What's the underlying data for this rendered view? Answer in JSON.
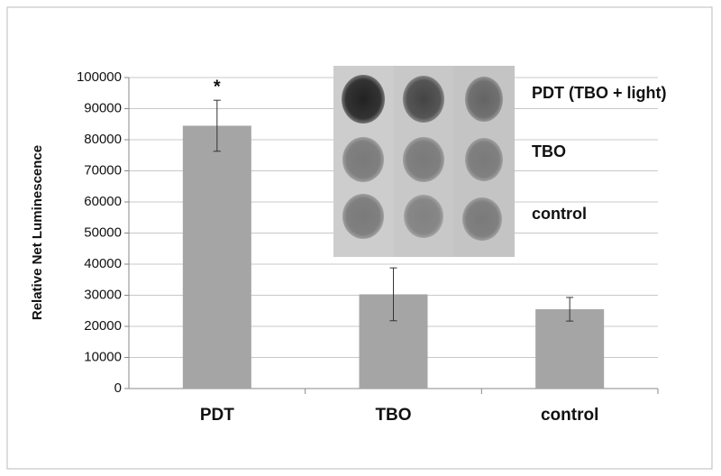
{
  "chart_data": {
    "type": "bar",
    "y_label": "Relative Net Luminescence",
    "categories": [
      "PDT",
      "TBO",
      "control"
    ],
    "values": [
      84500,
      30300,
      25500
    ],
    "errors": [
      8200,
      8500,
      3800
    ],
    "color": "#a5a5a5",
    "annotation": "*",
    "inset_labels": [
      "PDT (TBO + light)",
      "TBO",
      "control"
    ],
    "ylim": [
      0,
      100000
    ],
    "yticks": [
      0,
      10000,
      20000,
      30000,
      40000,
      50000,
      60000,
      70000,
      80000,
      90000,
      100000
    ],
    "grid": true
  }
}
